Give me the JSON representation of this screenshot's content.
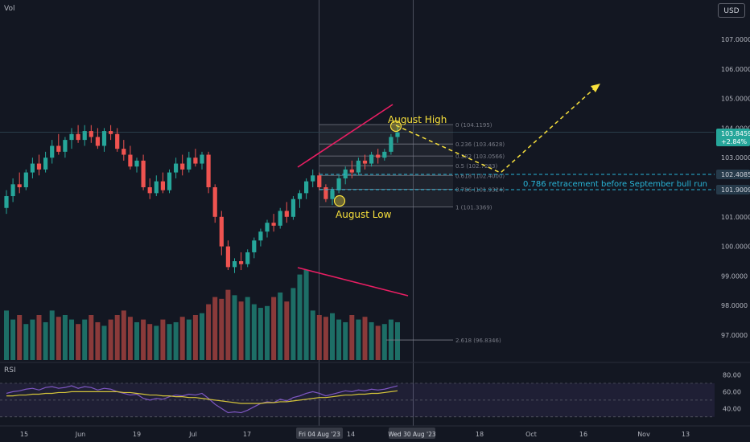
{
  "header": {
    "vol_label": "Vol",
    "currency": "USD"
  },
  "rsi_label": "RSI",
  "colors": {
    "background": "#131722",
    "bull": "#26a69a",
    "bear": "#ef5350",
    "volume_bull": "#1d6e66",
    "volume_bear": "#8a3a3a",
    "annotation_yellow": "#f7e03c",
    "trendline_pink": "#e91e63",
    "rsi_line": "#7e57c2",
    "rsi_ma": "#d4c43a",
    "retracement_text": "#29b6d8"
  },
  "price_axis": {
    "ticks": [
      "107.0000",
      "106.0000",
      "105.0000",
      "104.0000",
      "103.0000",
      "101.0000",
      "100.0000",
      "99.0000",
      "98.0000",
      "97.0000"
    ],
    "badges": [
      {
        "label": "103.8459",
        "sub": "+2.84%",
        "bg": "#26a69a",
        "fg": "#ffffff"
      },
      {
        "label": "102.4085",
        "sub": "",
        "bg": "#263a4a",
        "fg": "#d1d4dc"
      },
      {
        "label": "101.9009",
        "sub": "",
        "bg": "#263a4a",
        "fg": "#d1d4dc"
      }
    ]
  },
  "rsi_axis": {
    "ticks": [
      "80.00",
      "60.00",
      "40.00"
    ]
  },
  "time_axis": {
    "ticks": [
      "15",
      "Jun",
      "19",
      "Jul",
      "17",
      "14",
      "18",
      "Oct",
      "16",
      "Nov",
      "13"
    ],
    "highlight_labels": [
      "Fri 04 Aug '23",
      "Wed 30 Aug '23"
    ]
  },
  "annotations": {
    "august_high": "August High",
    "august_low": "August Low",
    "retracement_note": "0.786 retracement before September bull run"
  },
  "fib_levels": [
    {
      "ratio": "0",
      "label": "0 (104.1195)",
      "price": 104.1195
    },
    {
      "ratio": "0.236",
      "label": "0.236 (103.4628)",
      "price": 103.4628
    },
    {
      "ratio": "0.382",
      "label": "0.382 (103.0566)",
      "price": 103.0566
    },
    {
      "ratio": "0.5",
      "label": "0.5 (102.7283)",
      "price": 102.7283
    },
    {
      "ratio": "0.618",
      "label": "0.618 (102.4000)",
      "price": 102.4
    },
    {
      "ratio": "0.786",
      "label": "0.786 (101.9324)",
      "price": 101.9324
    },
    {
      "ratio": "1",
      "label": "1 (101.3369)",
      "price": 101.3369
    },
    {
      "ratio": "2.618",
      "label": "2.618 (96.8346)",
      "price": 96.8346
    }
  ],
  "chart_data": {
    "type": "candlestick",
    "title": "",
    "y_range": [
      96.5,
      107.5
    ],
    "yaxis_scale": "linear",
    "grid": false,
    "candles": [
      {
        "o": 101.3,
        "h": 101.9,
        "l": 101.1,
        "c": 101.7
      },
      {
        "o": 101.7,
        "h": 102.3,
        "l": 101.5,
        "c": 102.1
      },
      {
        "o": 102.1,
        "h": 102.5,
        "l": 101.8,
        "c": 102.0
      },
      {
        "o": 102.0,
        "h": 102.6,
        "l": 101.9,
        "c": 102.5
      },
      {
        "o": 102.5,
        "h": 103.0,
        "l": 102.3,
        "c": 102.8
      },
      {
        "o": 102.8,
        "h": 103.1,
        "l": 102.4,
        "c": 102.6
      },
      {
        "o": 102.6,
        "h": 103.2,
        "l": 102.5,
        "c": 103.0
      },
      {
        "o": 103.0,
        "h": 103.6,
        "l": 102.8,
        "c": 103.4
      },
      {
        "o": 103.4,
        "h": 103.8,
        "l": 103.1,
        "c": 103.2
      },
      {
        "o": 103.2,
        "h": 103.7,
        "l": 103.0,
        "c": 103.6
      },
      {
        "o": 103.6,
        "h": 104.0,
        "l": 103.3,
        "c": 103.8
      },
      {
        "o": 103.8,
        "h": 104.1,
        "l": 103.5,
        "c": 103.6
      },
      {
        "o": 103.6,
        "h": 104.1,
        "l": 103.4,
        "c": 103.9
      },
      {
        "o": 103.9,
        "h": 104.1,
        "l": 103.5,
        "c": 103.7
      },
      {
        "o": 103.7,
        "h": 104.0,
        "l": 103.3,
        "c": 103.4
      },
      {
        "o": 103.4,
        "h": 104.0,
        "l": 103.2,
        "c": 103.9
      },
      {
        "o": 103.9,
        "h": 104.1,
        "l": 103.6,
        "c": 103.8
      },
      {
        "o": 103.8,
        "h": 104.0,
        "l": 103.2,
        "c": 103.3
      },
      {
        "o": 103.3,
        "h": 103.6,
        "l": 102.9,
        "c": 103.1
      },
      {
        "o": 103.1,
        "h": 103.4,
        "l": 102.6,
        "c": 102.7
      },
      {
        "o": 102.7,
        "h": 103.0,
        "l": 102.5,
        "c": 102.9
      },
      {
        "o": 102.9,
        "h": 103.1,
        "l": 101.9,
        "c": 102.0
      },
      {
        "o": 102.0,
        "h": 102.3,
        "l": 101.6,
        "c": 101.8
      },
      {
        "o": 101.8,
        "h": 102.4,
        "l": 101.7,
        "c": 102.2
      },
      {
        "o": 102.2,
        "h": 102.5,
        "l": 101.8,
        "c": 101.9
      },
      {
        "o": 101.9,
        "h": 102.6,
        "l": 101.8,
        "c": 102.5
      },
      {
        "o": 102.5,
        "h": 103.0,
        "l": 102.3,
        "c": 102.8
      },
      {
        "o": 102.8,
        "h": 103.1,
        "l": 102.4,
        "c": 102.6
      },
      {
        "o": 102.6,
        "h": 103.2,
        "l": 102.5,
        "c": 103.0
      },
      {
        "o": 103.0,
        "h": 103.3,
        "l": 102.7,
        "c": 102.8
      },
      {
        "o": 102.8,
        "h": 103.2,
        "l": 102.6,
        "c": 103.1
      },
      {
        "o": 103.1,
        "h": 103.2,
        "l": 101.8,
        "c": 102.0
      },
      {
        "o": 102.0,
        "h": 102.1,
        "l": 100.8,
        "c": 101.0
      },
      {
        "o": 101.0,
        "h": 101.2,
        "l": 99.7,
        "c": 100.0
      },
      {
        "o": 100.0,
        "h": 100.2,
        "l": 99.2,
        "c": 99.3
      },
      {
        "o": 99.3,
        "h": 99.6,
        "l": 99.1,
        "c": 99.5
      },
      {
        "o": 99.5,
        "h": 99.8,
        "l": 99.2,
        "c": 99.4
      },
      {
        "o": 99.4,
        "h": 99.9,
        "l": 99.3,
        "c": 99.8
      },
      {
        "o": 99.8,
        "h": 100.3,
        "l": 99.6,
        "c": 100.2
      },
      {
        "o": 100.2,
        "h": 100.6,
        "l": 100.0,
        "c": 100.5
      },
      {
        "o": 100.5,
        "h": 100.9,
        "l": 100.3,
        "c": 100.8
      },
      {
        "o": 100.8,
        "h": 101.1,
        "l": 100.5,
        "c": 100.7
      },
      {
        "o": 100.7,
        "h": 101.3,
        "l": 100.6,
        "c": 101.2
      },
      {
        "o": 101.2,
        "h": 101.5,
        "l": 100.8,
        "c": 101.0
      },
      {
        "o": 101.0,
        "h": 101.7,
        "l": 100.9,
        "c": 101.6
      },
      {
        "o": 101.6,
        "h": 101.9,
        "l": 101.3,
        "c": 101.8
      },
      {
        "o": 101.8,
        "h": 102.3,
        "l": 101.6,
        "c": 102.2
      },
      {
        "o": 102.2,
        "h": 102.6,
        "l": 102.0,
        "c": 102.4
      },
      {
        "o": 102.4,
        "h": 102.5,
        "l": 101.9,
        "c": 102.0
      },
      {
        "o": 102.0,
        "h": 102.1,
        "l": 101.5,
        "c": 101.6
      },
      {
        "o": 101.6,
        "h": 102.0,
        "l": 101.4,
        "c": 101.9
      },
      {
        "o": 101.9,
        "h": 102.4,
        "l": 101.8,
        "c": 102.3
      },
      {
        "o": 102.3,
        "h": 102.7,
        "l": 102.1,
        "c": 102.6
      },
      {
        "o": 102.6,
        "h": 102.9,
        "l": 102.3,
        "c": 102.5
      },
      {
        "o": 102.5,
        "h": 103.0,
        "l": 102.4,
        "c": 102.9
      },
      {
        "o": 102.9,
        "h": 103.1,
        "l": 102.6,
        "c": 102.8
      },
      {
        "o": 102.8,
        "h": 103.2,
        "l": 102.7,
        "c": 103.1
      },
      {
        "o": 103.1,
        "h": 103.3,
        "l": 102.8,
        "c": 103.0
      },
      {
        "o": 103.0,
        "h": 103.3,
        "l": 102.9,
        "c": 103.2
      },
      {
        "o": 103.2,
        "h": 103.8,
        "l": 103.1,
        "c": 103.7
      },
      {
        "o": 103.7,
        "h": 104.1,
        "l": 103.5,
        "c": 103.85
      }
    ],
    "volume": [
      0.55,
      0.45,
      0.5,
      0.4,
      0.45,
      0.5,
      0.42,
      0.55,
      0.48,
      0.5,
      0.45,
      0.4,
      0.45,
      0.5,
      0.42,
      0.38,
      0.45,
      0.5,
      0.55,
      0.48,
      0.42,
      0.45,
      0.4,
      0.38,
      0.45,
      0.4,
      0.42,
      0.48,
      0.45,
      0.5,
      0.52,
      0.62,
      0.7,
      0.68,
      0.78,
      0.72,
      0.65,
      0.7,
      0.62,
      0.58,
      0.6,
      0.7,
      0.75,
      0.65,
      0.8,
      0.95,
      1.0,
      0.55,
      0.5,
      0.48,
      0.52,
      0.45,
      0.42,
      0.5,
      0.45,
      0.48,
      0.42,
      0.38,
      0.4,
      0.45,
      0.42
    ],
    "rsi": [
      58,
      60,
      61,
      63,
      64,
      62,
      65,
      66,
      64,
      65,
      67,
      64,
      66,
      65,
      62,
      64,
      63,
      60,
      58,
      56,
      57,
      52,
      50,
      52,
      51,
      54,
      56,
      55,
      57,
      56,
      58,
      52,
      45,
      40,
      35,
      36,
      35,
      38,
      42,
      46,
      48,
      47,
      51,
      49,
      53,
      55,
      58,
      60,
      58,
      55,
      57,
      59,
      61,
      60,
      62,
      61,
      63,
      62,
      63,
      65,
      67
    ],
    "rsi_ma": [
      55,
      55,
      56,
      56,
      57,
      57,
      58,
      58,
      59,
      59,
      60,
      60,
      60,
      60,
      60,
      60,
      60,
      60,
      59,
      59,
      58,
      57,
      56,
      56,
      55,
      55,
      54,
      54,
      53,
      53,
      52,
      51,
      50,
      49,
      48,
      47,
      46,
      46,
      46,
      46,
      47,
      47,
      48,
      48,
      49,
      50,
      51,
      52,
      53,
      53,
      54,
      55,
      56,
      56,
      57,
      57,
      58,
      58,
      59,
      60,
      61
    ],
    "rsi_range": [
      25,
      90
    ]
  }
}
